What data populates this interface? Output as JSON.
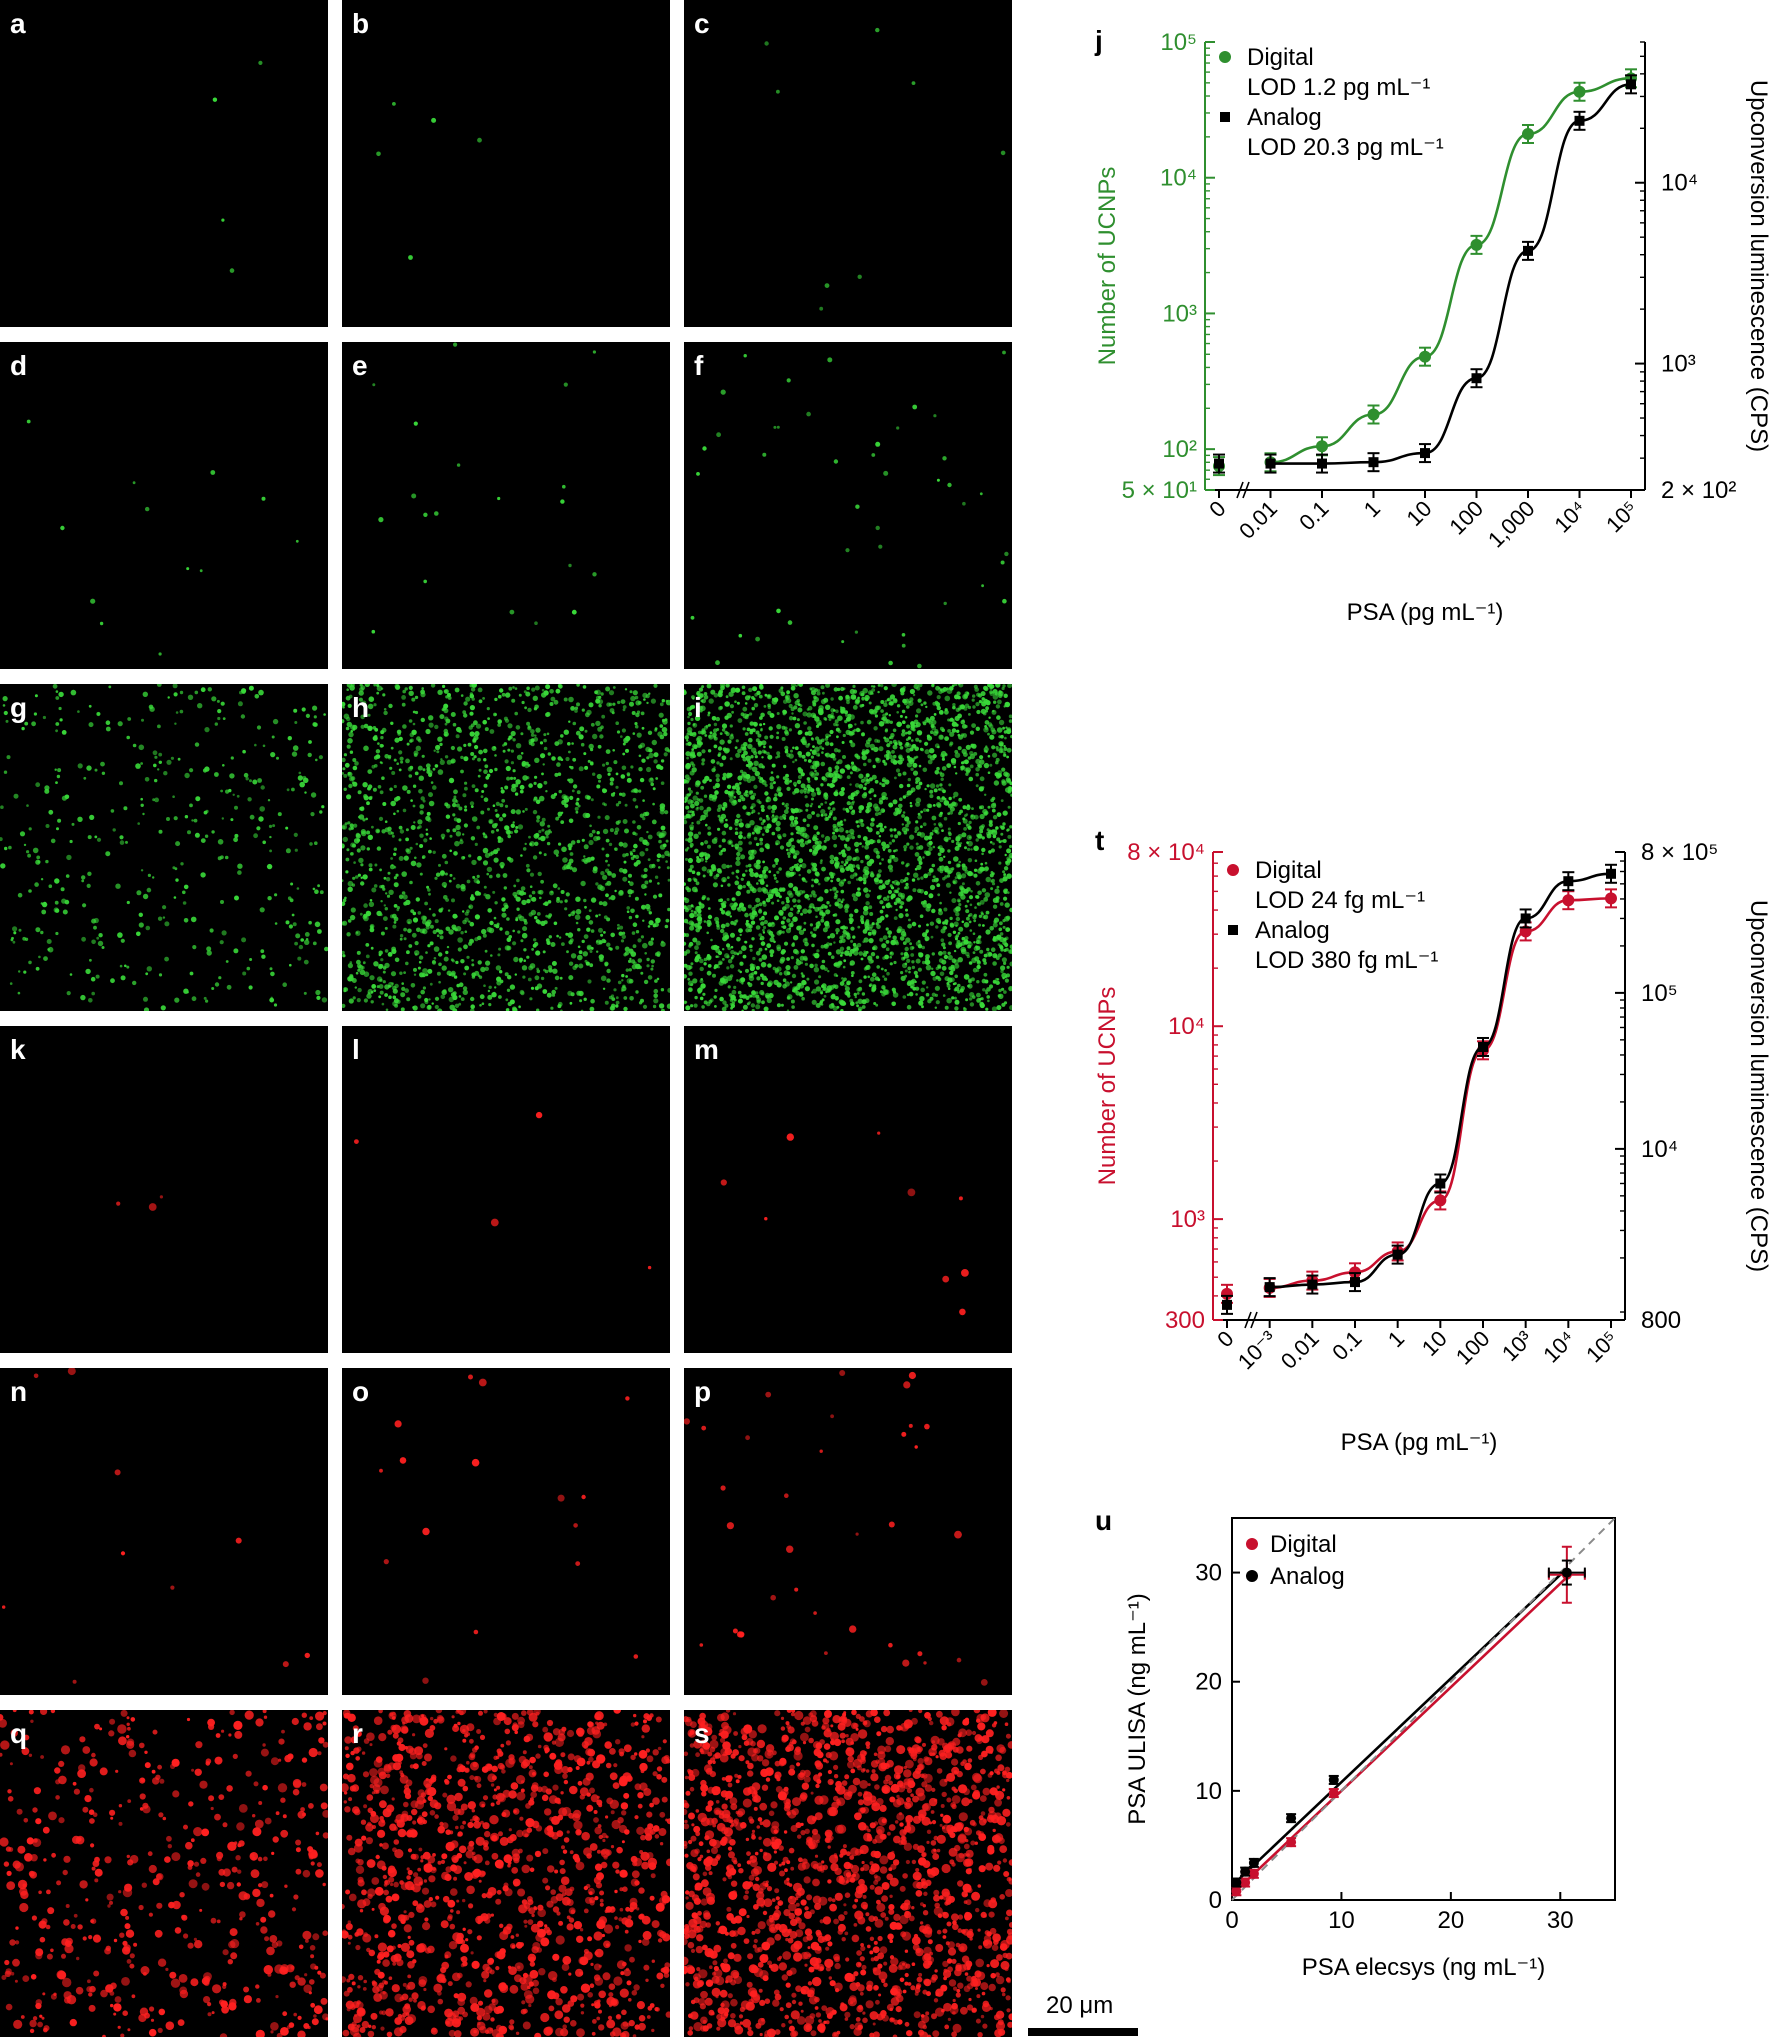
{
  "panels": {
    "labels": [
      "a",
      "b",
      "c",
      "d",
      "e",
      "f",
      "g",
      "h",
      "i",
      "k",
      "l",
      "m",
      "n",
      "o",
      "p",
      "q",
      "r",
      "s"
    ],
    "counts": [
      4,
      5,
      8,
      12,
      20,
      45,
      420,
      1700,
      3200,
      3,
      4,
      9,
      10,
      16,
      35,
      500,
      1200,
      1600
    ],
    "colors": [
      "green",
      "green",
      "green",
      "green",
      "green",
      "green",
      "green",
      "green",
      "green",
      "red",
      "red",
      "red",
      "red",
      "red",
      "red",
      "red",
      "red",
      "red"
    ]
  },
  "colors": {
    "green": "#2f8f2f",
    "red": "#c8102e",
    "black": "#000000",
    "dashed": "#8a8a8a",
    "dot_green": "#39d839",
    "dot_red": "#ff2020"
  },
  "scalebar": {
    "label": "20 μm"
  },
  "chart_data": [
    {
      "panel": "j",
      "type": "scatter",
      "xlabel": "PSA (pg mL⁻¹)",
      "ylabel_left": "Number of UCNPs",
      "ylabel_right": "Upconversion luminescence (CPS)",
      "x_scale": "log",
      "xticks": [
        "0",
        "0.01",
        "0.1",
        "1",
        "10",
        "100",
        "1,000",
        "10⁴",
        "10⁵"
      ],
      "yticks_left": [
        "5 × 10¹",
        "10²",
        "10³",
        "10⁴",
        "10⁵"
      ],
      "yticks_right": [
        "2 × 10²",
        "10³",
        "10⁴"
      ],
      "ylim_left": [
        50,
        100000
      ],
      "ylim_right": [
        200,
        60000
      ],
      "legend": [
        {
          "name": "Digital",
          "lod": "LOD 1.2 pg mL⁻¹",
          "marker": "circle",
          "color": "green"
        },
        {
          "name": "Analog",
          "lod": "LOD 20.3 pg mL⁻¹",
          "marker": "square",
          "color": "black"
        }
      ],
      "series": [
        {
          "name": "Digital",
          "x": [
            0,
            0.01,
            0.1,
            1,
            10,
            100,
            1000,
            10000,
            100000
          ],
          "y": [
            75,
            80,
            105,
            180,
            480,
            3200,
            21000,
            43000,
            54000
          ]
        },
        {
          "name": "Analog",
          "x": [
            0,
            0.01,
            0.1,
            1,
            10,
            100,
            1000,
            10000,
            100000
          ],
          "y": [
            280,
            280,
            280,
            285,
            320,
            830,
            4200,
            22000,
            35000
          ]
        }
      ]
    },
    {
      "panel": "t",
      "type": "scatter",
      "xlabel": "PSA (pg mL⁻¹)",
      "ylabel_left": "Number of UCNPs",
      "ylabel_right": "Upconversion luminescence (CPS)",
      "x_scale": "log",
      "xticks": [
        "0",
        "10⁻³",
        "0.01",
        "0.1",
        "1",
        "10",
        "100",
        "10³",
        "10⁴",
        "10⁵"
      ],
      "yticks_left": [
        "300",
        "10³",
        "10⁴",
        "8 × 10⁴"
      ],
      "yticks_right": [
        "800",
        "10⁴",
        "10⁵",
        "8 × 10⁵"
      ],
      "ylim_left": [
        300,
        80000
      ],
      "ylim_right": [
        800,
        800000
      ],
      "legend": [
        {
          "name": "Digital",
          "lod": "LOD 24 fg mL⁻¹",
          "marker": "circle",
          "color": "red"
        },
        {
          "name": "Analog",
          "lod": "LOD 380 fg mL⁻¹",
          "marker": "square",
          "color": "black"
        }
      ],
      "series": [
        {
          "name": "Digital",
          "x": [
            0,
            0.001,
            0.01,
            0.1,
            1,
            10,
            100,
            1000,
            10000,
            100000
          ],
          "y": [
            410,
            440,
            480,
            530,
            680,
            1250,
            7500,
            31000,
            45000,
            46000
          ]
        },
        {
          "name": "Analog",
          "x": [
            0,
            0.001,
            0.01,
            0.1,
            1,
            10,
            100,
            1000,
            10000,
            100000
          ],
          "y": [
            1000,
            1300,
            1350,
            1400,
            2100,
            6000,
            45000,
            300000,
            520000,
            580000
          ]
        }
      ]
    },
    {
      "panel": "u",
      "type": "scatter",
      "xlabel": "PSA elecsys (ng mL⁻¹)",
      "ylabel": "PSA ULISA (ng mL⁻¹)",
      "xlim": [
        0,
        35
      ],
      "ylim": [
        0,
        35
      ],
      "xticks": [
        0,
        10,
        20,
        30
      ],
      "yticks": [
        0,
        10,
        20,
        30
      ],
      "legend": [
        {
          "name": "Digital",
          "marker": "circle",
          "color": "red"
        },
        {
          "name": "Analog",
          "marker": "circle",
          "color": "black"
        }
      ],
      "series": [
        {
          "name": "Digital",
          "x": [
            0.4,
            1.2,
            2.0,
            5.4,
            9.3,
            30.6
          ],
          "y": [
            0.8,
            1.6,
            2.4,
            5.3,
            9.8,
            29.8
          ]
        },
        {
          "name": "Analog",
          "x": [
            0.4,
            1.2,
            2.0,
            5.4,
            9.3,
            30.6
          ],
          "y": [
            1.6,
            2.6,
            3.4,
            7.5,
            11.0,
            30.0
          ]
        }
      ],
      "fit_lines": [
        {
          "name": "Digital",
          "slope": 0.95,
          "intercept": 0.5
        },
        {
          "name": "Analog",
          "slope": 0.95,
          "intercept": 1.3
        },
        {
          "name": "identity",
          "slope": 1.0,
          "intercept": 0,
          "style": "dashed"
        }
      ]
    }
  ],
  "chart_labels": {
    "j": "j",
    "t": "t",
    "u": "u"
  }
}
